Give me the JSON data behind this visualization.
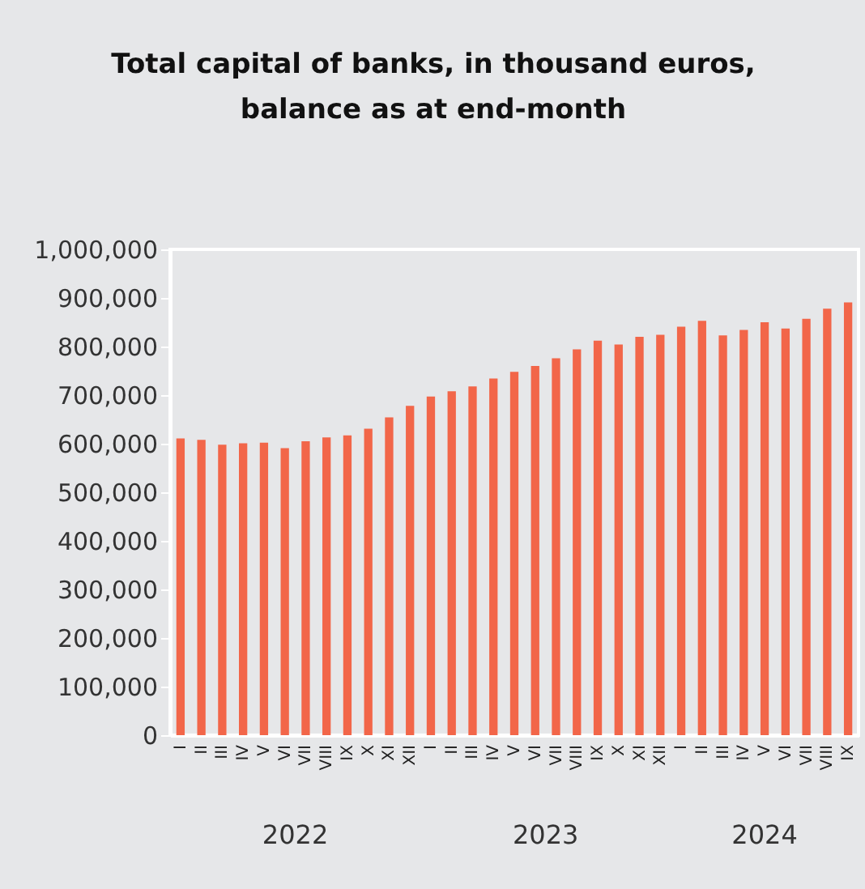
{
  "chart_data": {
    "type": "bar",
    "title": "Total capital of banks, in thousand euros, balance as at end-month",
    "categories": [
      "I",
      "II",
      "III",
      "IV",
      "V",
      "VI",
      "VII",
      "VIII",
      "IX",
      "X",
      "XI",
      "XII",
      "I",
      "II",
      "III",
      "IV",
      "V",
      "VI",
      "VII",
      "VIII",
      "IX",
      "X",
      "XI",
      "XII",
      "I",
      "II",
      "III",
      "IV",
      "V",
      "VI",
      "VII",
      "VIII",
      "IX"
    ],
    "values": [
      611000,
      608000,
      598000,
      601000,
      602000,
      591000,
      605000,
      613000,
      617000,
      631000,
      654000,
      678000,
      697000,
      708000,
      718000,
      734000,
      748000,
      760000,
      776000,
      794000,
      812000,
      804000,
      820000,
      824000,
      841000,
      853000,
      823000,
      834000,
      850000,
      837000,
      857000,
      878000,
      891000
    ],
    "color": "#f26649",
    "ylim": [
      0,
      1000000
    ],
    "yticks": [
      {
        "value": 0,
        "label": "0"
      },
      {
        "value": 100000,
        "label": "100,000"
      },
      {
        "value": 200000,
        "label": "200,000"
      },
      {
        "value": 300000,
        "label": "300,000"
      },
      {
        "value": 400000,
        "label": "400,000"
      },
      {
        "value": 500000,
        "label": "500,000"
      },
      {
        "value": 600000,
        "label": "600,000"
      },
      {
        "value": 700000,
        "label": "700,000"
      },
      {
        "value": 800000,
        "label": "800,000"
      },
      {
        "value": 900000,
        "label": "900,000"
      },
      {
        "value": 1000000,
        "label": "1,000,000"
      }
    ],
    "annotations": [
      "2022",
      "2023",
      "2024"
    ],
    "grid": false
  }
}
